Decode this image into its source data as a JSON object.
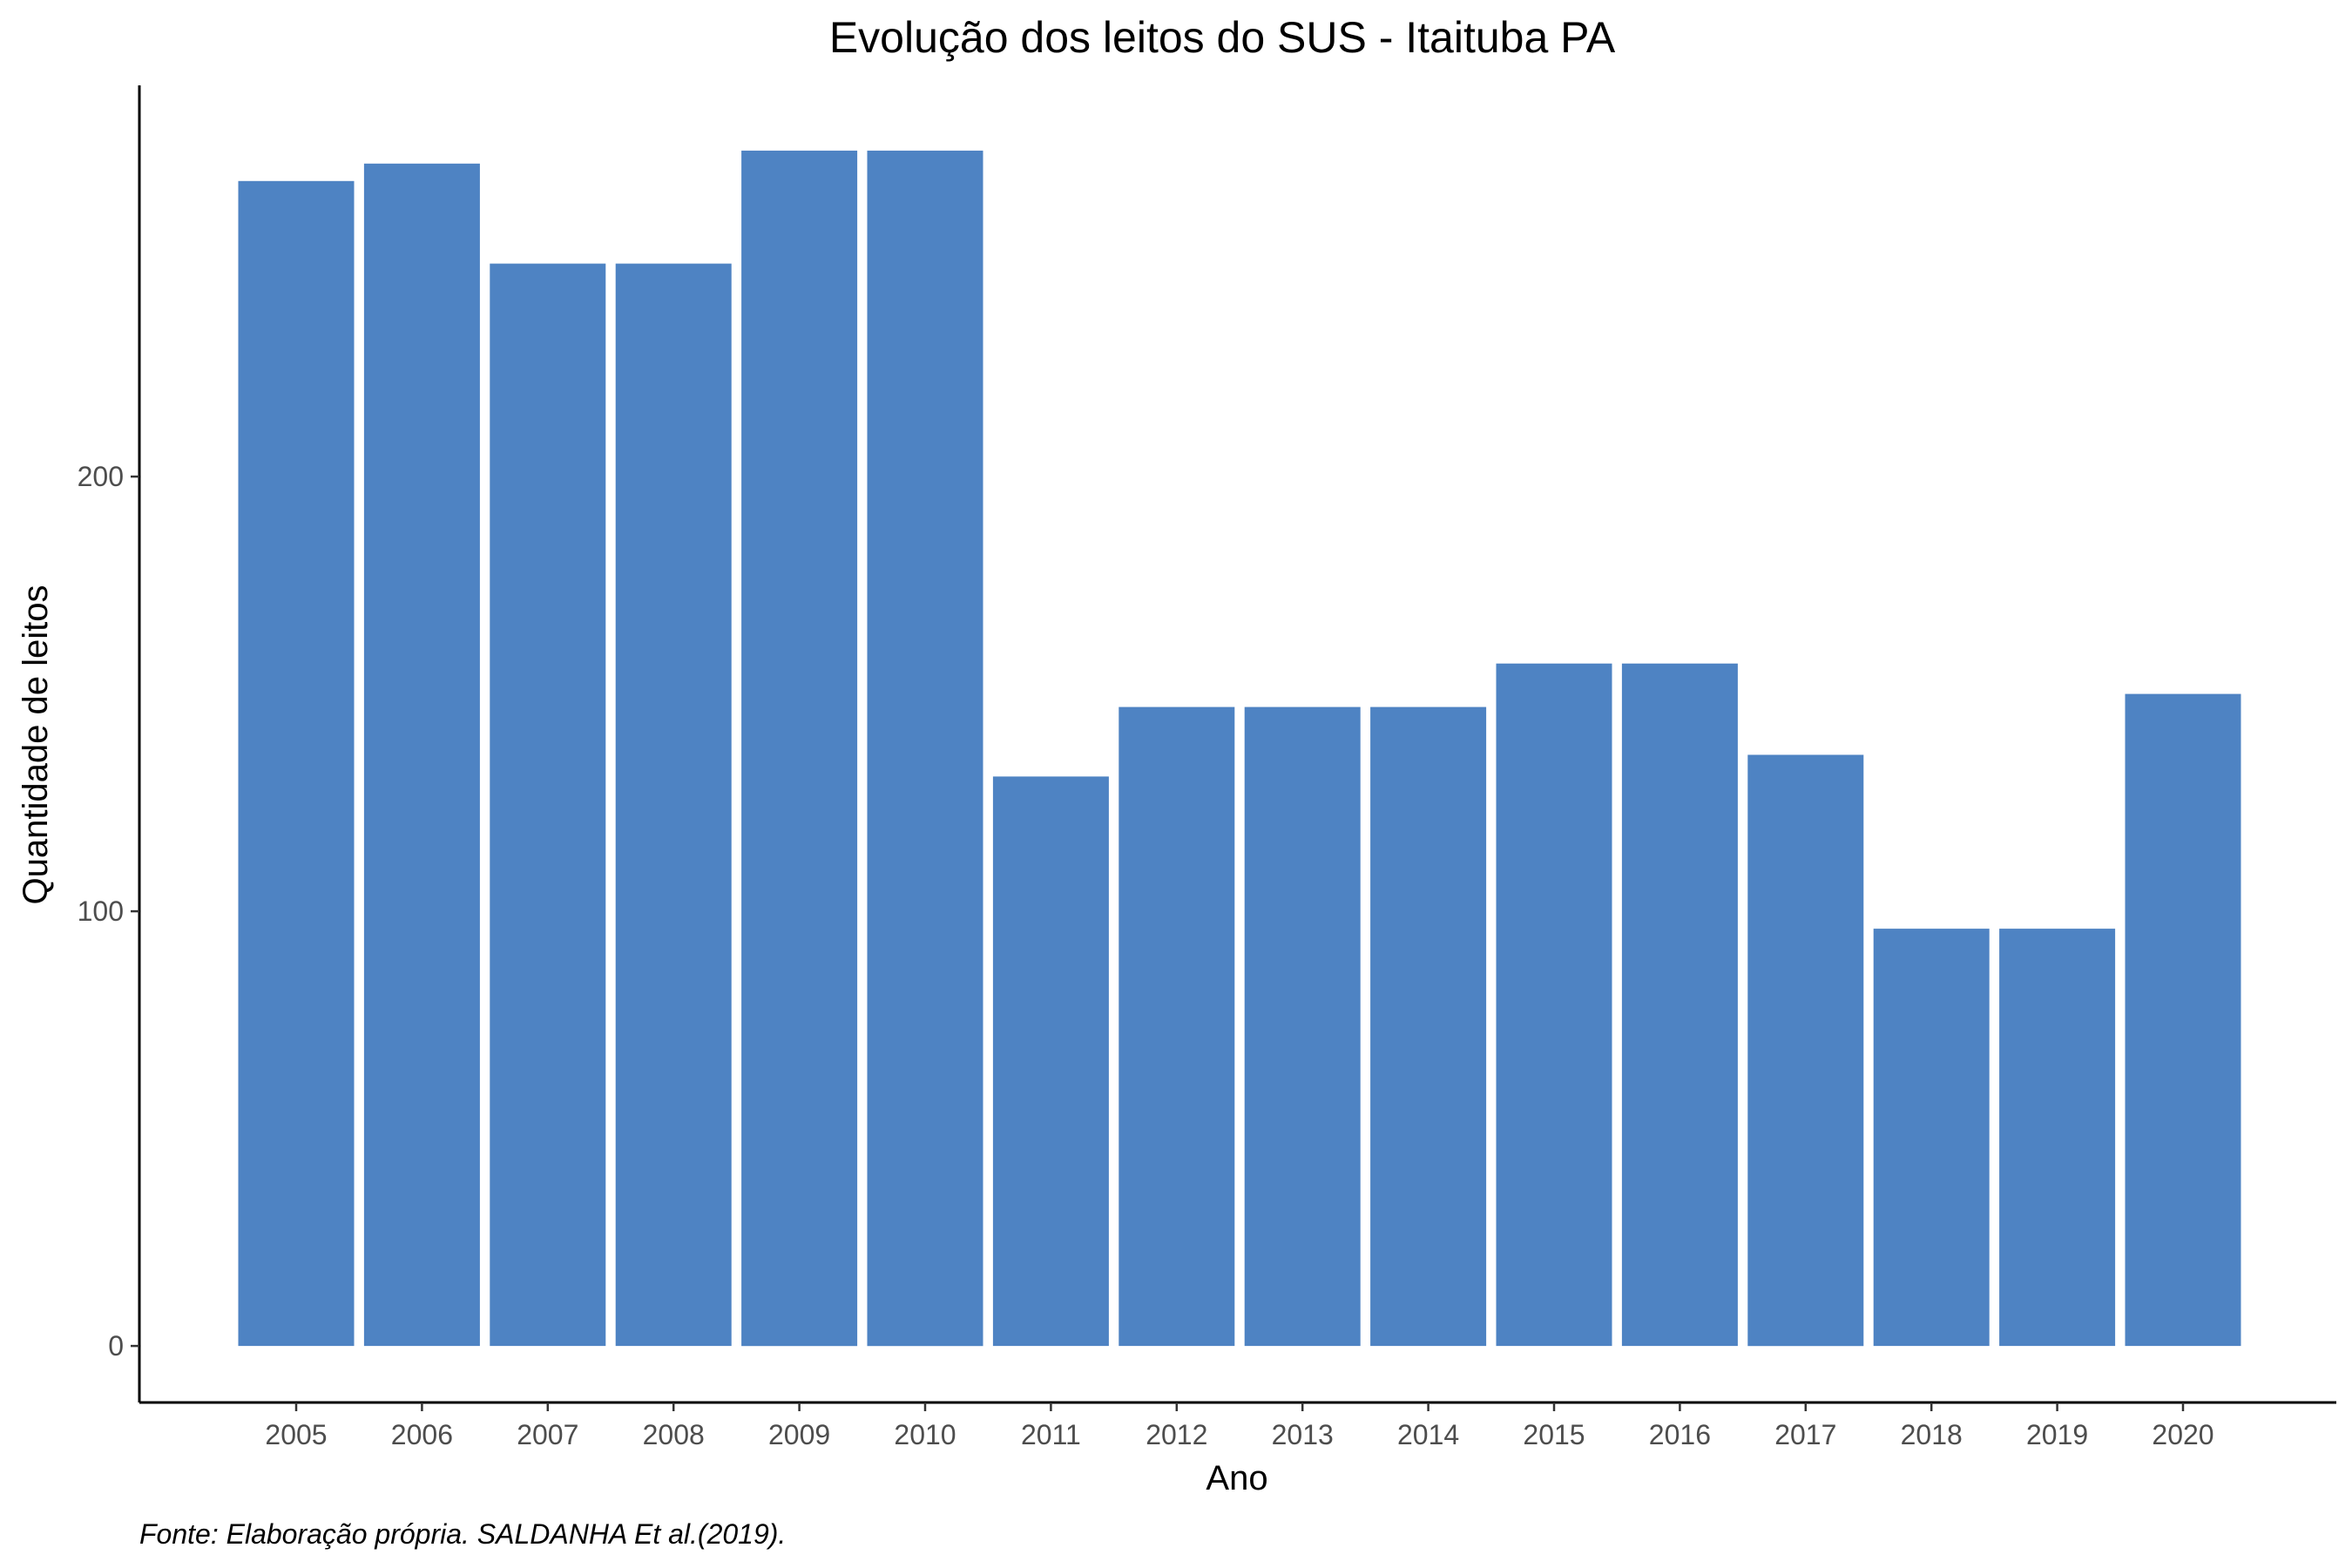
{
  "chart_data": {
    "type": "bar",
    "title": "Evolução dos leitos do SUS -  Itaituba PA",
    "xlabel": "Ano",
    "ylabel": "Quantidade de leitos",
    "caption": "Fonte: Elaboração própria. SALDANHA Et al.(2019).",
    "categories": [
      "2005",
      "2006",
      "2007",
      "2008",
      "2009",
      "2010",
      "2011",
      "2012",
      "2013",
      "2014",
      "2015",
      "2016",
      "2017",
      "2018",
      "2019",
      "2020"
    ],
    "values": [
      268,
      272,
      249,
      249,
      275,
      275,
      131,
      147,
      147,
      147,
      157,
      157,
      136,
      96,
      96,
      150
    ],
    "yticks": [
      0,
      100,
      200
    ],
    "ylim": [
      -13,
      290
    ],
    "grid": false,
    "legend": "none",
    "bar_color": "#4e83c3"
  }
}
